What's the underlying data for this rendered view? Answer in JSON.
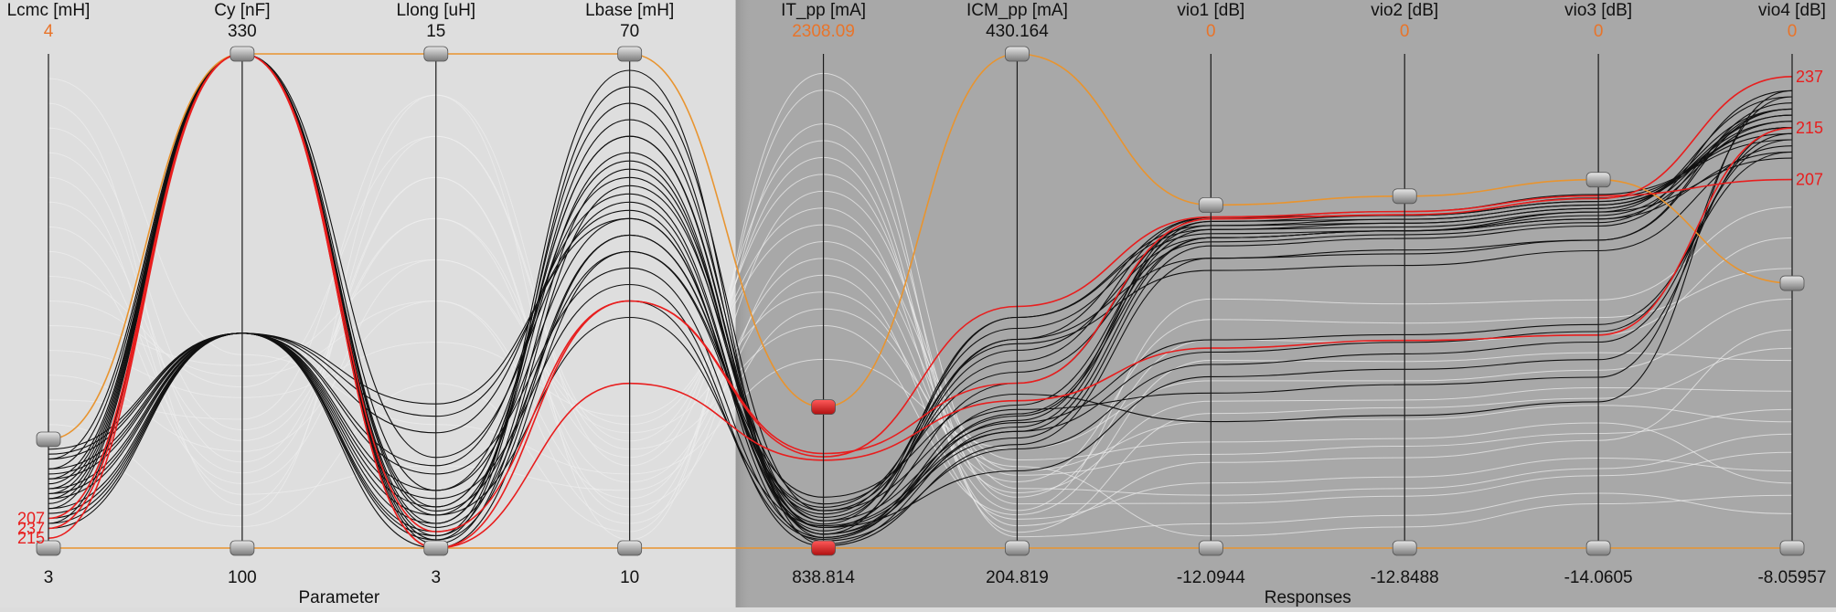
{
  "chart_data": {
    "type": "parallel-coordinates",
    "groups": [
      {
        "label": "Parameter",
        "axes": [
          0,
          1,
          2,
          3
        ]
      },
      {
        "label": "Responses",
        "axes": [
          4,
          5,
          6,
          7,
          8,
          9
        ]
      }
    ],
    "axes": [
      {
        "name": "Lcmc [mH]",
        "max": "4",
        "min": "3",
        "max_num": 4,
        "min_num": 3,
        "max_color": "#e8742a"
      },
      {
        "name": "Cy [nF]",
        "max": "330",
        "min": "100",
        "max_num": 330,
        "min_num": 100,
        "max_color": "#111111"
      },
      {
        "name": "Llong [uH]",
        "max": "15",
        "min": "3",
        "max_num": 15,
        "min_num": 3,
        "max_color": "#111111"
      },
      {
        "name": "Lbase [mH]",
        "max": "70",
        "min": "10",
        "max_num": 70,
        "min_num": 10,
        "max_color": "#111111"
      },
      {
        "name": "IT_pp [mA]",
        "max": "2308.09",
        "min": "838.814",
        "max_num": 2308.09,
        "min_num": 838.814,
        "max_color": "#e8742a"
      },
      {
        "name": "ICM_pp [mA]",
        "max": "430.164",
        "min": "204.819",
        "max_num": 430.164,
        "min_num": 204.819,
        "max_color": "#111111"
      },
      {
        "name": "vio1 [dB]",
        "max": "0",
        "min": "-12.0944",
        "max_num": 0,
        "min_num": -12.0944,
        "max_color": "#e8742a"
      },
      {
        "name": "vio2 [dB]",
        "max": "0",
        "min": "-12.8488",
        "max_num": 0,
        "min_num": -12.8488,
        "max_color": "#e8742a"
      },
      {
        "name": "vio3 [dB]",
        "max": "0",
        "min": "-14.0605",
        "max_num": 0,
        "min_num": -14.0605,
        "max_color": "#e8742a"
      },
      {
        "name": "vio4 [dB]",
        "max": "0",
        "min": "-8.05957",
        "max_num": 0,
        "min_num": -8.05957,
        "max_color": "#e8742a"
      }
    ],
    "filters": [
      {
        "axis": 0,
        "low": 3,
        "high": 3.22
      },
      {
        "axis": 1,
        "low": 100,
        "high": 330
      },
      {
        "axis": 2,
        "low": 3,
        "high": 15
      },
      {
        "axis": 3,
        "low": 10,
        "high": 70
      },
      {
        "axis": 4,
        "low": 838.814,
        "high": 1258,
        "active": true
      },
      {
        "axis": 5,
        "low": 204.819,
        "high": 430.164
      },
      {
        "axis": 6,
        "low": -12.0944,
        "high": -3.7
      },
      {
        "axis": 7,
        "low": -12.8488,
        "high": -3.7
      },
      {
        "axis": 8,
        "low": -14.0605,
        "high": -3.58
      },
      {
        "axis": 9,
        "low": -8.05957,
        "high": -3.74
      }
    ],
    "highlight": {
      "color": "#e8942f",
      "values": [
        3.22,
        330,
        15,
        70,
        1258,
        430.164,
        -3.7,
        -3.7,
        -3.58,
        -3.74
      ]
    },
    "selected": [
      {
        "label": "207",
        "color": "#e81e1e",
        "values": [
          3.06,
          330,
          3.4,
          40,
          1110,
          315,
          -3.99,
          -4.1,
          -4.04,
          -2.05
        ]
      },
      {
        "label": "237",
        "color": "#e81e1e",
        "values": [
          3.04,
          330,
          3,
          40,
          1120,
          280,
          -4.04,
          -4.18,
          -4.12,
          -0.37
        ]
      },
      {
        "label": "215",
        "color": "#e81e1e",
        "values": [
          3.02,
          330,
          3,
          30,
          1100,
          272,
          -7.2,
          -7.45,
          -8.0,
          -1.21
        ]
      }
    ],
    "black_lines": [
      [
        3.1,
        330,
        3.2,
        66,
        950,
        290,
        -4.0,
        -4.1,
        -4.0,
        -1.4
      ],
      [
        3.12,
        330,
        3.6,
        62,
        920,
        300,
        -4.0,
        -4.2,
        -4.1,
        -1.3
      ],
      [
        3.14,
        330,
        4.0,
        60,
        900,
        280,
        -4.1,
        -4.2,
        -4.2,
        -1.2
      ],
      [
        3.05,
        330,
        3.8,
        58,
        880,
        310,
        -4.3,
        -4.4,
        -4.4,
        -0.9
      ],
      [
        3.08,
        330,
        3.3,
        56,
        930,
        295,
        -4.5,
        -4.6,
        -4.6,
        -1.0
      ],
      [
        3.16,
        330,
        3.1,
        54,
        970,
        285,
        -4.6,
        -4.7,
        -4.8,
        -0.6
      ],
      [
        3.18,
        330,
        5.2,
        52,
        890,
        300,
        -5.0,
        -5.2,
        -5.3,
        -0.8
      ],
      [
        3.11,
        330,
        4.4,
        50,
        910,
        310,
        -4.2,
        -4.3,
        -4.3,
        -1.1
      ],
      [
        3.09,
        330,
        3.5,
        48,
        940,
        305,
        -4.4,
        -4.6,
        -4.5,
        -0.7
      ],
      [
        3.13,
        330,
        3.9,
        46,
        960,
        298,
        -5.3,
        -5.5,
        -5.6,
        -1.5
      ],
      [
        3.2,
        200,
        3.3,
        68,
        850,
        260,
        -4.1,
        -4.3,
        -4.3,
        -1.2
      ],
      [
        3.18,
        200,
        3.6,
        64,
        870,
        270,
        -4.2,
        -4.4,
        -4.4,
        -1.0
      ],
      [
        3.16,
        200,
        4.0,
        60,
        880,
        265,
        -4.5,
        -4.6,
        -4.7,
        -1.1
      ],
      [
        3.14,
        200,
        4.4,
        57,
        900,
        255,
        -4.7,
        -4.8,
        -4.9,
        -0.9
      ],
      [
        3.12,
        200,
        5.0,
        55,
        920,
        262,
        -7.0,
        -7.3,
        -7.7,
        -1.6
      ],
      [
        3.1,
        200,
        5.8,
        53,
        880,
        258,
        -7.3,
        -7.5,
        -7.9,
        -1.4
      ],
      [
        3.08,
        200,
        6.2,
        51,
        860,
        250,
        -7.6,
        -7.8,
        -8.2,
        -1.3
      ],
      [
        3.06,
        200,
        6.5,
        50,
        900,
        240,
        -7.9,
        -8.2,
        -8.7,
        -1.2
      ],
      [
        3.05,
        200,
        3.2,
        48,
        950,
        268,
        -8.3,
        -8.6,
        -9.2,
        -0.7
      ],
      [
        3.04,
        200,
        3.0,
        46,
        990,
        275,
        -9.0,
        -9.4,
        -9.9,
        -0.6
      ],
      [
        3.07,
        200,
        4.8,
        44,
        870,
        263,
        -4.0,
        -4.2,
        -4.2,
        -1.2
      ],
      [
        3.11,
        200,
        4.2,
        42,
        845,
        252,
        -5.0,
        -5.1,
        -5.3,
        -0.9
      ],
      [
        3.15,
        200,
        3.4,
        40,
        865,
        266,
        -4.3,
        -4.5,
        -4.5,
        -1.7
      ],
      [
        3.19,
        200,
        3.8,
        38,
        905,
        258,
        -4.5,
        -4.6,
        -4.7,
        -1.6
      ]
    ],
    "grey_lines": [
      [
        3.9,
        120,
        13,
        22,
        1500,
        220,
        -7.5,
        -8.0,
        -8.5,
        -5.0
      ],
      [
        3.7,
        150,
        11,
        18,
        1700,
        230,
        -8.5,
        -9.0,
        -9.5,
        -5.5
      ],
      [
        3.5,
        180,
        9,
        16,
        1900,
        240,
        -9.0,
        -9.5,
        -10.0,
        -6.0
      ],
      [
        3.3,
        160,
        14,
        20,
        2000,
        215,
        -10.0,
        -10.5,
        -11.0,
        -4.5
      ],
      [
        3.8,
        140,
        12,
        14,
        2100,
        225,
        -11.0,
        -11.5,
        -12.0,
        -6.5
      ],
      [
        3.6,
        130,
        10,
        24,
        1600,
        235,
        -6.5,
        -7.0,
        -7.5,
        -3.5
      ],
      [
        3.4,
        170,
        8,
        26,
        1800,
        245,
        -9.5,
        -10.0,
        -10.5,
        -7.0
      ],
      [
        3.2,
        110,
        7,
        12,
        2200,
        210,
        -11.5,
        -12.0,
        -12.5,
        -7.5
      ],
      [
        3.95,
        190,
        6,
        19,
        1400,
        250,
        -8.0,
        -8.5,
        -9.0,
        -4.0
      ],
      [
        3.75,
        125,
        5,
        17,
        1650,
        218,
        -10.5,
        -11.0,
        -11.5,
        -6.8
      ],
      [
        3.55,
        175,
        13,
        23,
        1950,
        228,
        -7.0,
        -7.5,
        -8.0,
        -3.0
      ],
      [
        3.35,
        145,
        9,
        13,
        1750,
        238,
        -9.8,
        -10.2,
        -10.8,
        -5.8
      ],
      [
        3.85,
        155,
        11,
        21,
        2050,
        212,
        -8.8,
        -9.2,
        -9.8,
        -4.8
      ],
      [
        3.65,
        135,
        12,
        15,
        1550,
        242,
        -11.8,
        -12.3,
        -12.8,
        -7.2
      ],
      [
        3.45,
        185,
        10,
        25,
        1850,
        222,
        -6.0,
        -6.5,
        -7.0,
        -2.5
      ],
      [
        3.25,
        115,
        14,
        11,
        2250,
        232,
        -10.8,
        -11.3,
        -11.8,
        -6.2
      ]
    ]
  }
}
